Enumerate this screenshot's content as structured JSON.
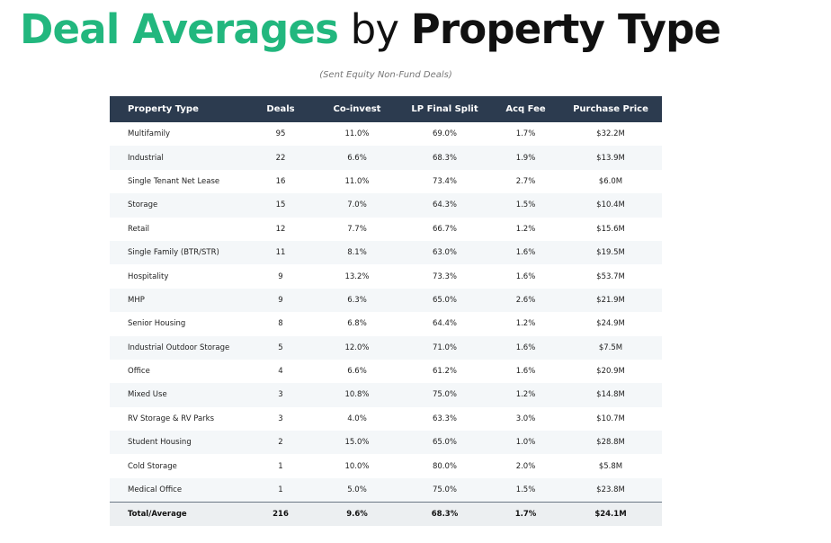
{
  "header": {
    "title_part1": "Deal Averages",
    "title_part2": " by ",
    "title_part3": "Property Type",
    "subtitle": "(Sent Equity Non-Fund Deals)"
  },
  "chart_data": {
    "type": "table",
    "title": "Deal Averages by Property Type",
    "subtitle": "(Sent Equity Non-Fund Deals)",
    "columns": [
      "Property Type",
      "Deals",
      "Co-invest",
      "LP Final Split",
      "Acq Fee",
      "Purchase Price"
    ],
    "rows": [
      [
        "Multifamily",
        "95",
        "11.0%",
        "69.0%",
        "1.7%",
        "$32.2M"
      ],
      [
        "Industrial",
        "22",
        "6.6%",
        "68.3%",
        "1.9%",
        "$13.9M"
      ],
      [
        "Single Tenant Net Lease",
        "16",
        "11.0%",
        "73.4%",
        "2.7%",
        "$6.0M"
      ],
      [
        "Storage",
        "15",
        "7.0%",
        "64.3%",
        "1.5%",
        "$10.4M"
      ],
      [
        "Retail",
        "12",
        "7.7%",
        "66.7%",
        "1.2%",
        "$15.6M"
      ],
      [
        "Single Family (BTR/STR)",
        "11",
        "8.1%",
        "63.0%",
        "1.6%",
        "$19.5M"
      ],
      [
        "Hospitality",
        "9",
        "13.2%",
        "73.3%",
        "1.6%",
        "$53.7M"
      ],
      [
        "MHP",
        "9",
        "6.3%",
        "65.0%",
        "2.6%",
        "$21.9M"
      ],
      [
        "Senior Housing",
        "8",
        "6.8%",
        "64.4%",
        "1.2%",
        "$24.9M"
      ],
      [
        "Industrial Outdoor Storage",
        "5",
        "12.0%",
        "71.0%",
        "1.6%",
        "$7.5M"
      ],
      [
        "Office",
        "4",
        "6.6%",
        "61.2%",
        "1.6%",
        "$20.9M"
      ],
      [
        "Mixed Use",
        "3",
        "10.8%",
        "75.0%",
        "1.2%",
        "$14.8M"
      ],
      [
        "RV Storage & RV Parks",
        "3",
        "4.0%",
        "63.3%",
        "3.0%",
        "$10.7M"
      ],
      [
        "Student Housing",
        "2",
        "15.0%",
        "65.0%",
        "1.0%",
        "$28.8M"
      ],
      [
        "Cold Storage",
        "1",
        "10.0%",
        "80.0%",
        "2.0%",
        "$5.8M"
      ],
      [
        "Medical Office",
        "1",
        "5.0%",
        "75.0%",
        "1.5%",
        "$23.8M"
      ]
    ],
    "total": [
      "Total/Average",
      "216",
      "9.6%",
      "68.3%",
      "1.7%",
      "$24.1M"
    ]
  }
}
